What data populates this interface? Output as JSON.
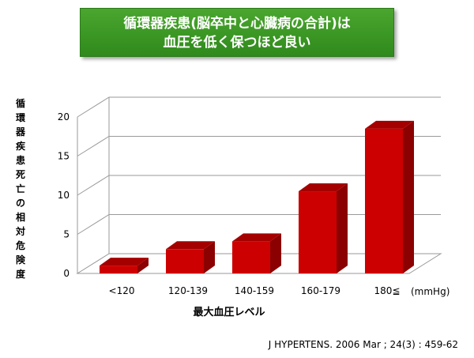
{
  "title": {
    "line1": "循環器疾患(脳卒中と心臓病の合計)は",
    "line2": "血圧を低く保つほど良い"
  },
  "chart_data": {
    "type": "bar",
    "categories": [
      "<120",
      "120-139",
      "140-159",
      "160-179",
      "180≦"
    ],
    "values": [
      1.0,
      3.1,
      4.1,
      10.5,
      18.5
    ],
    "xlabel": "最大血圧レベル",
    "ylabel": "循環器疾患死亡の相対危険度",
    "unit": "(mmHg)",
    "ylim": [
      0,
      20
    ],
    "yticks": [
      0,
      5,
      10,
      15,
      20
    ],
    "grid": true,
    "three_d": true,
    "bar_color": "#cc0000",
    "bar_side_color": "#8b0000",
    "bar_top_color": "#a50000"
  },
  "source": "J HYPERTENS. 2006 Mar ; 24(3) : 459-62"
}
